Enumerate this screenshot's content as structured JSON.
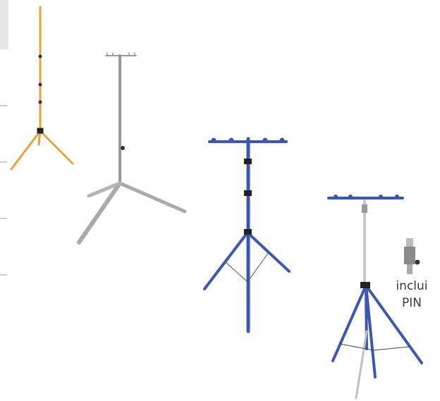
{
  "caption": {
    "line1": "inclui",
    "line2": "PIN"
  }
}
